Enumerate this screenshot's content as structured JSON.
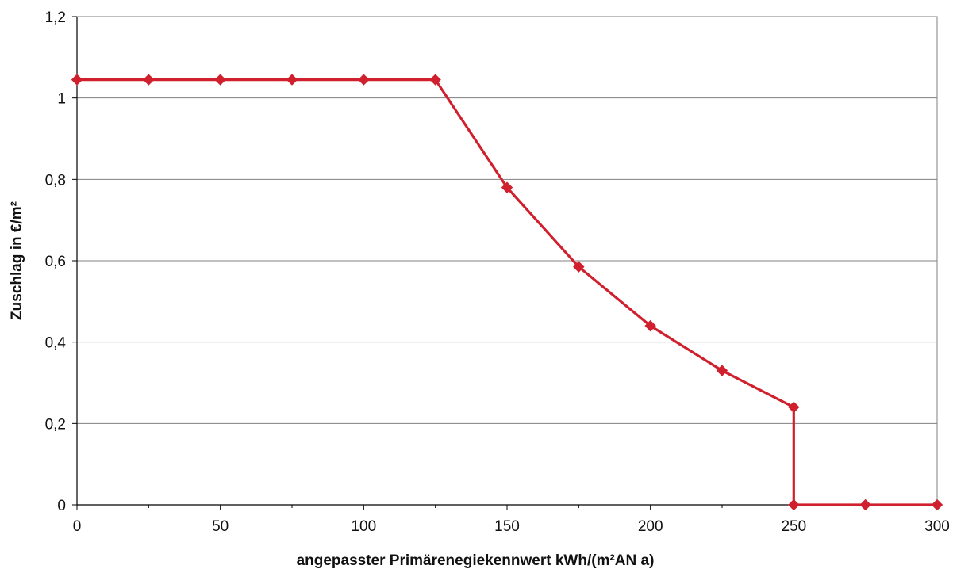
{
  "chart_data": {
    "type": "line",
    "title": "",
    "xlabel": "angepasster Primärenegiekennwert kWh/(m²AN a)",
    "ylabel": "Zuschlag in €/m²",
    "xlim": [
      0,
      300
    ],
    "ylim": [
      0,
      1.2
    ],
    "x_ticks": [
      "0",
      "50",
      "100",
      "150",
      "200",
      "250",
      "300"
    ],
    "y_ticks": [
      "0",
      "0,2",
      "0,4",
      "0,6",
      "0,8",
      "1",
      "1,2"
    ],
    "grid": {
      "horizontal": true,
      "vertical": false
    },
    "legend": "none",
    "series": [
      {
        "color": "#d0202e",
        "marker": "diamond",
        "points": [
          [
            0,
            1.045
          ],
          [
            25,
            1.045
          ],
          [
            50,
            1.045
          ],
          [
            75,
            1.045
          ],
          [
            100,
            1.045
          ],
          [
            125,
            1.045
          ],
          [
            150,
            0.78
          ],
          [
            175,
            0.585
          ],
          [
            200,
            0.44
          ],
          [
            225,
            0.33
          ],
          [
            250,
            0.24
          ],
          [
            250,
            0
          ],
          [
            275,
            0
          ],
          [
            300,
            0
          ]
        ]
      }
    ]
  }
}
